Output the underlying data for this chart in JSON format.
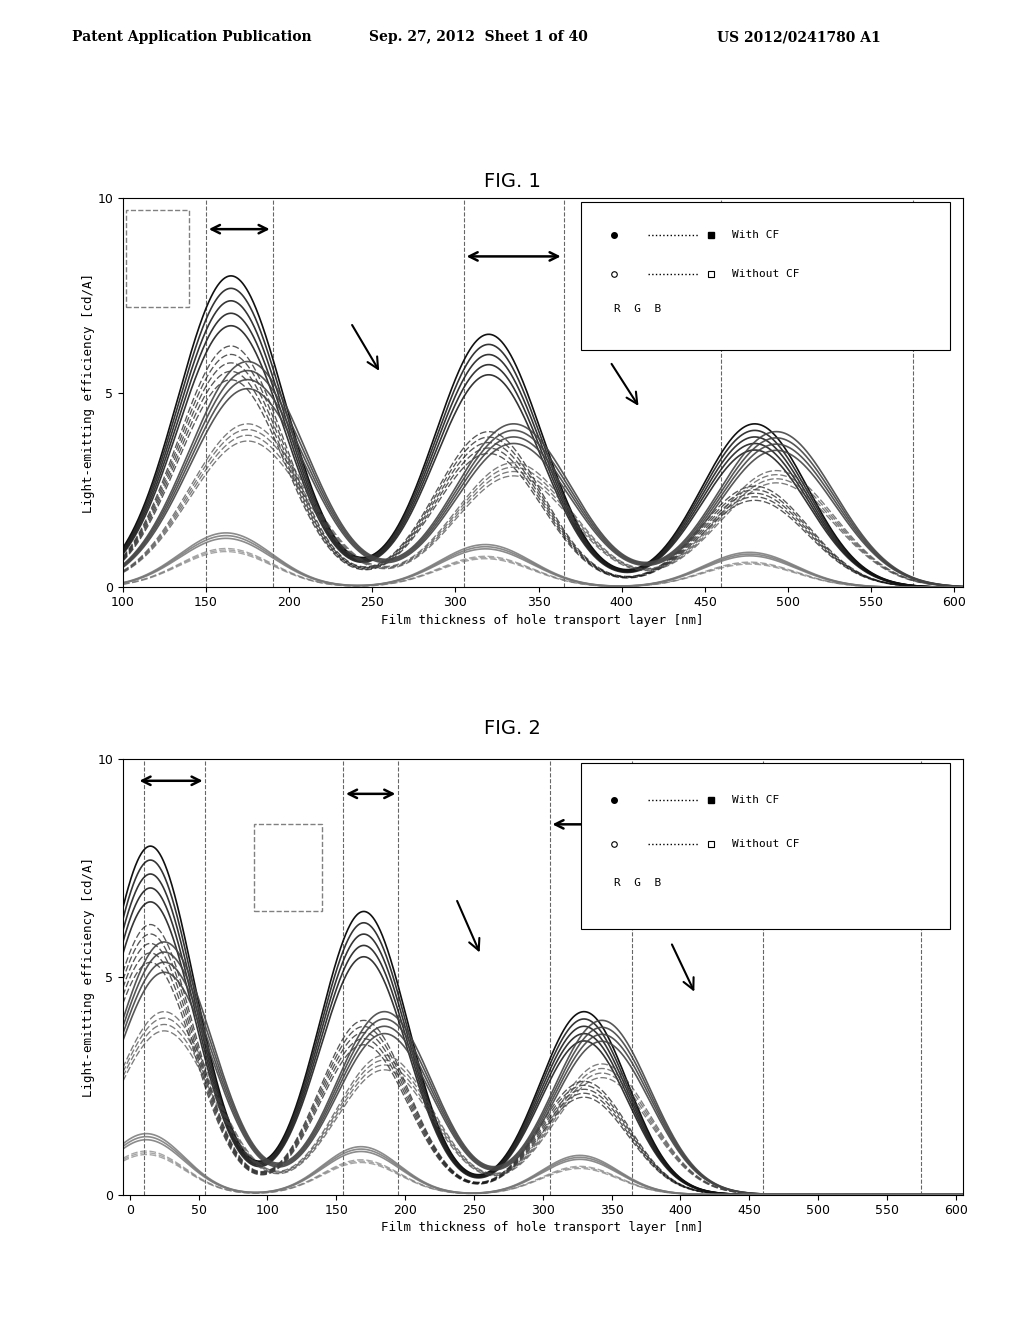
{
  "fig1_title": "FIG. 1",
  "fig2_title": "FIG. 2",
  "header_left": "Patent Application Publication",
  "header_mid": "Sep. 27, 2012  Sheet 1 of 40",
  "header_right": "US 2012/0241780 A1",
  "ylabel": "Light-emitting efficiency [cd/A]",
  "xlabel": "Film thickness of hole transport layer [nm]",
  "ylim": [
    0,
    10
  ],
  "fig1_xlim": [
    100,
    605
  ],
  "fig2_xlim": [
    -5,
    605
  ],
  "fig1_xticks": [
    100,
    150,
    200,
    250,
    300,
    350,
    400,
    450,
    500,
    550,
    600
  ],
  "fig2_xticks": [
    0,
    50,
    100,
    150,
    200,
    250,
    300,
    350,
    400,
    450,
    500,
    550,
    600
  ],
  "yticks": [
    0,
    5,
    10
  ],
  "bg_color": "#ffffff",
  "fig1_vlines": [
    150,
    190,
    305,
    365,
    460,
    575
  ],
  "fig2_vlines": [
    10,
    55,
    155,
    195,
    305,
    365,
    460,
    575
  ],
  "fig1_arrow1": [
    150,
    190,
    9.2
  ],
  "fig1_arrow2": [
    305,
    365,
    8.5
  ],
  "fig1_arrow3": [
    460,
    575,
    7.8
  ],
  "fig2_arrow1": [
    5,
    55,
    9.5
  ],
  "fig2_arrow2": [
    155,
    195,
    9.2
  ],
  "fig2_arrow3": [
    305,
    365,
    8.5
  ],
  "fig2_arrow4": [
    460,
    575,
    7.8
  ]
}
